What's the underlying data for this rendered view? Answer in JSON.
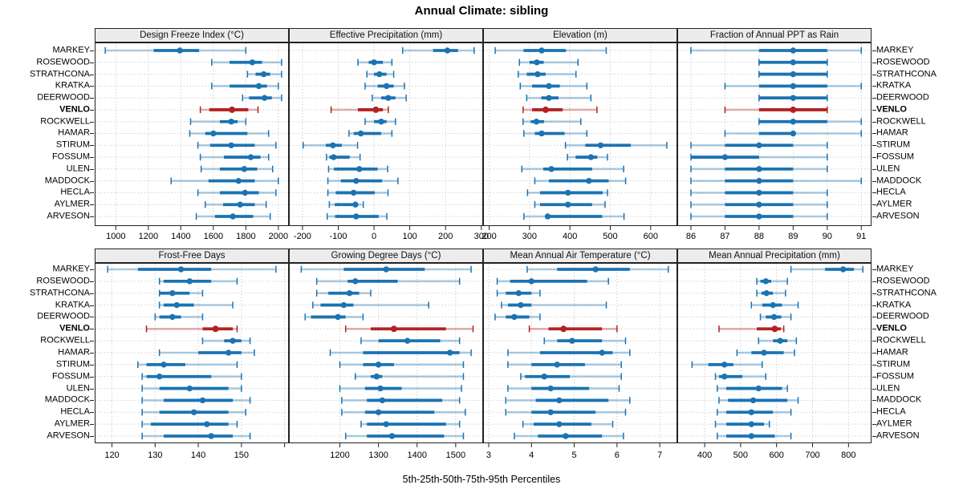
{
  "colors": {
    "normal": "#1b73b2",
    "highlight": "#b22222",
    "grid": "#bcbcbc",
    "strip_bg": "#ececec",
    "border": "#222222"
  },
  "chart_data": {
    "type": "scatter",
    "subtype": "percentile_dotplot_grid",
    "title": "Annual Climate: sibling",
    "xlabel": "5th-25th-50th-75th-95th Percentiles",
    "grid": "on",
    "rows": 2,
    "cols": 4,
    "percentile_levels": [
      5,
      25,
      50,
      75,
      95
    ],
    "highlight_station": "VENLO",
    "stations": [
      "MARKEY",
      "ROSEWOOD",
      "STRATHCONA",
      "KRATKA",
      "DEERWOOD",
      "VENLO",
      "ROCKWELL",
      "HAMAR",
      "STIRUM",
      "FOSSUM",
      "ULEN",
      "MADDOCK",
      "HECLA",
      "AYLMER",
      "ARVESON"
    ],
    "panels": [
      {
        "title": "Design Freeze Index (°C)",
        "grid_row": 0,
        "grid_col": 0,
        "xlim": [
          870,
          2065
        ],
        "ticks": [
          1000,
          1200,
          1400,
          1600,
          1800,
          2000
        ],
        "ticks_unlabeled": [],
        "values": [
          [
            935,
            1233,
            1394,
            1512,
            1800
          ],
          [
            1590,
            1700,
            1840,
            1900,
            2020
          ],
          [
            1810,
            1860,
            1910,
            1950,
            2020
          ],
          [
            1590,
            1700,
            1880,
            1930,
            2000
          ],
          [
            1780,
            1820,
            1915,
            1960,
            2020
          ],
          [
            1520,
            1575,
            1715,
            1815,
            1875
          ],
          [
            1460,
            1640,
            1710,
            1750,
            1800
          ],
          [
            1455,
            1550,
            1600,
            1810,
            1940
          ],
          [
            1505,
            1580,
            1710,
            1855,
            1985
          ],
          [
            1520,
            1665,
            1830,
            1890,
            1940
          ],
          [
            1525,
            1640,
            1790,
            1870,
            1965
          ],
          [
            1340,
            1570,
            1755,
            1855,
            2000
          ],
          [
            1505,
            1640,
            1795,
            1880,
            1985
          ],
          [
            1550,
            1660,
            1765,
            1855,
            1925
          ],
          [
            1495,
            1610,
            1720,
            1845,
            1950
          ]
        ]
      },
      {
        "title": "Effective Precipitation (mm)",
        "grid_row": 0,
        "grid_col": 1,
        "xlim": [
          -238,
          305
        ],
        "ticks": [
          -200,
          -100,
          0,
          100,
          200,
          300
        ],
        "ticks_unlabeled": [],
        "values": [
          [
            80,
            165,
            205,
            235,
            280
          ],
          [
            -45,
            -15,
            0,
            25,
            50
          ],
          [
            -20,
            0,
            15,
            35,
            55
          ],
          [
            -25,
            10,
            35,
            55,
            85
          ],
          [
            -5,
            20,
            40,
            60,
            90
          ],
          [
            -120,
            -45,
            5,
            25,
            40
          ],
          [
            -25,
            0,
            20,
            35,
            60
          ],
          [
            -70,
            -57,
            -37,
            20,
            50
          ],
          [
            -198,
            -135,
            -115,
            -90,
            -46
          ],
          [
            -133,
            -125,
            -113,
            -68,
            -39
          ],
          [
            -127,
            -112,
            -41,
            10,
            38
          ],
          [
            -129,
            -93,
            -50,
            23,
            67
          ],
          [
            -129,
            -107,
            -57,
            2,
            39
          ],
          [
            -125,
            -110,
            -52,
            -45,
            -30
          ],
          [
            -131,
            -109,
            -50,
            13,
            36
          ]
        ]
      },
      {
        "title": "Elevation (m)",
        "grid_row": 0,
        "grid_col": 2,
        "xlim": [
          185,
          666
        ],
        "ticks": [
          200,
          300,
          400,
          500,
          600
        ],
        "ticks_unlabeled": [],
        "values": [
          [
            215,
            285,
            330,
            390,
            490
          ],
          [
            275,
            300,
            318,
            335,
            420
          ],
          [
            272,
            293,
            320,
            340,
            415
          ],
          [
            277,
            306,
            348,
            375,
            442
          ],
          [
            293,
            329,
            348,
            372,
            452
          ],
          [
            284,
            306,
            340,
            382,
            467
          ],
          [
            284,
            303,
            317,
            336,
            427
          ],
          [
            286,
            313,
            330,
            387,
            442
          ],
          [
            389,
            438,
            476,
            551,
            640
          ],
          [
            394,
            414,
            452,
            468,
            493
          ],
          [
            281,
            334,
            354,
            455,
            533
          ],
          [
            313,
            348,
            447,
            496,
            538
          ],
          [
            295,
            326,
            395,
            481,
            493
          ],
          [
            313,
            326,
            395,
            455,
            487
          ],
          [
            286,
            340,
            345,
            480,
            534
          ]
        ]
      },
      {
        "title": "Fraction of Annual PPT as Rain",
        "grid_row": 0,
        "grid_col": 3,
        "xlim": [
          85.6,
          91.3
        ],
        "ticks": [
          86,
          87,
          88,
          89,
          90,
          91
        ],
        "ticks_unlabeled": [],
        "values": [
          [
            86,
            88,
            89,
            90,
            91
          ],
          [
            88,
            88,
            89,
            90,
            90
          ],
          [
            88,
            88,
            89,
            90,
            90
          ],
          [
            87,
            88,
            89,
            90,
            91
          ],
          [
            88,
            88,
            89,
            90,
            90
          ],
          [
            87,
            88,
            89,
            90,
            90
          ],
          [
            88,
            88,
            89,
            90,
            91
          ],
          [
            87,
            88,
            89,
            89,
            91
          ],
          [
            86,
            87,
            88,
            89,
            90
          ],
          [
            86,
            86,
            87,
            88,
            90
          ],
          [
            86,
            87,
            88,
            89,
            90
          ],
          [
            86,
            87,
            88,
            89,
            91
          ],
          [
            86,
            87,
            88,
            89,
            90
          ],
          [
            86,
            87,
            88,
            89,
            90
          ],
          [
            86,
            87,
            88,
            89,
            90
          ]
        ]
      },
      {
        "title": "Frost-Free Days",
        "grid_row": 1,
        "grid_col": 0,
        "xlim": [
          116,
          161
        ],
        "ticks": [
          120,
          130,
          140,
          150
        ],
        "ticks_unlabeled": [
          160
        ],
        "values": [
          [
            119,
            126,
            136,
            143,
            158
          ],
          [
            131,
            132,
            138,
            143,
            149
          ],
          [
            131,
            131,
            134,
            138,
            141
          ],
          [
            131,
            132,
            135,
            139,
            148
          ],
          [
            130,
            131,
            134,
            136,
            141
          ],
          [
            128,
            141,
            144,
            148,
            149
          ],
          [
            141,
            146,
            148,
            150,
            152
          ],
          [
            131,
            140,
            147,
            150,
            153
          ],
          [
            126,
            128,
            132,
            137,
            149
          ],
          [
            127,
            128,
            131,
            143,
            150
          ],
          [
            127,
            131,
            138,
            147,
            150
          ],
          [
            127,
            132,
            141,
            148,
            152
          ],
          [
            127,
            131,
            139,
            147,
            151
          ],
          [
            127,
            129,
            142,
            147,
            149
          ],
          [
            127,
            132,
            143,
            148,
            152
          ]
        ]
      },
      {
        "title": "Growing Degree Days (°C)",
        "grid_row": 1,
        "grid_col": 1,
        "xlim": [
          1068,
          1571
        ],
        "ticks": [
          1200,
          1300,
          1400,
          1500
        ],
        "ticks_unlabeled": [],
        "values": [
          [
            1100,
            1210,
            1320,
            1420,
            1540
          ],
          [
            1140,
            1220,
            1240,
            1350,
            1510
          ],
          [
            1140,
            1170,
            1225,
            1250,
            1280
          ],
          [
            1130,
            1150,
            1210,
            1235,
            1430
          ],
          [
            1110,
            1125,
            1195,
            1215,
            1260
          ],
          [
            1215,
            1280,
            1340,
            1475,
            1545
          ],
          [
            1255,
            1300,
            1375,
            1460,
            1510
          ],
          [
            1175,
            1260,
            1485,
            1510,
            1540
          ],
          [
            1200,
            1260,
            1300,
            1340,
            1520
          ],
          [
            1240,
            1280,
            1295,
            1310,
            1520
          ],
          [
            1200,
            1265,
            1305,
            1360,
            1515
          ],
          [
            1205,
            1270,
            1310,
            1465,
            1510
          ],
          [
            1205,
            1265,
            1300,
            1445,
            1525
          ],
          [
            1255,
            1270,
            1320,
            1475,
            1510
          ],
          [
            1215,
            1270,
            1335,
            1470,
            1520
          ]
        ]
      },
      {
        "title": "Mean Annual Air Temperature (°C)",
        "grid_row": 1,
        "grid_col": 2,
        "xlim": [
          2.87,
          7.41
        ],
        "ticks": [
          3,
          4,
          5,
          6,
          7
        ],
        "ticks_unlabeled": [],
        "values": [
          [
            3.9,
            4.6,
            5.5,
            6.3,
            7.2
          ],
          [
            3.2,
            3.5,
            4.0,
            5.3,
            5.8
          ],
          [
            3.2,
            3.4,
            3.7,
            4.0,
            4.2
          ],
          [
            3.3,
            3.45,
            3.75,
            4.0,
            5.75
          ],
          [
            3.15,
            3.4,
            3.6,
            3.95,
            4.2
          ],
          [
            3.95,
            4.4,
            4.75,
            5.65,
            6.0
          ],
          [
            4.3,
            4.6,
            4.95,
            5.65,
            6.2
          ],
          [
            3.45,
            4.2,
            5.65,
            5.9,
            6.3
          ],
          [
            3.45,
            4.0,
            4.6,
            5.25,
            6.1
          ],
          [
            3.75,
            3.85,
            4.3,
            4.9,
            6.1
          ],
          [
            3.45,
            4.0,
            4.45,
            5.35,
            6.05
          ],
          [
            3.4,
            4.1,
            4.65,
            5.8,
            6.3
          ],
          [
            3.4,
            4.0,
            4.45,
            5.5,
            6.2
          ],
          [
            3.8,
            4.05,
            4.65,
            5.4,
            5.9
          ],
          [
            3.6,
            4.15,
            4.8,
            5.65,
            6.15
          ]
        ]
      },
      {
        "title": "Mean Annual Precipitation (mm)",
        "grid_row": 1,
        "grid_col": 3,
        "xlim": [
          324,
          864
        ],
        "ticks": [
          400,
          500,
          600,
          700,
          800
        ],
        "ticks_unlabeled": [],
        "values": [
          [
            640,
            735,
            785,
            815,
            840
          ],
          [
            545,
            555,
            570,
            585,
            630
          ],
          [
            545,
            558,
            572,
            590,
            625
          ],
          [
            530,
            560,
            590,
            615,
            660
          ],
          [
            555,
            570,
            593,
            613,
            640
          ],
          [
            440,
            545,
            595,
            612,
            620
          ],
          [
            550,
            590,
            610,
            630,
            655
          ],
          [
            490,
            530,
            565,
            620,
            650
          ],
          [
            365,
            410,
            455,
            480,
            560
          ],
          [
            430,
            440,
            455,
            505,
            570
          ],
          [
            435,
            460,
            550,
            615,
            630
          ],
          [
            440,
            465,
            535,
            630,
            660
          ],
          [
            435,
            460,
            530,
            590,
            640
          ],
          [
            430,
            460,
            530,
            565,
            580
          ],
          [
            435,
            460,
            530,
            595,
            640
          ]
        ]
      }
    ]
  }
}
